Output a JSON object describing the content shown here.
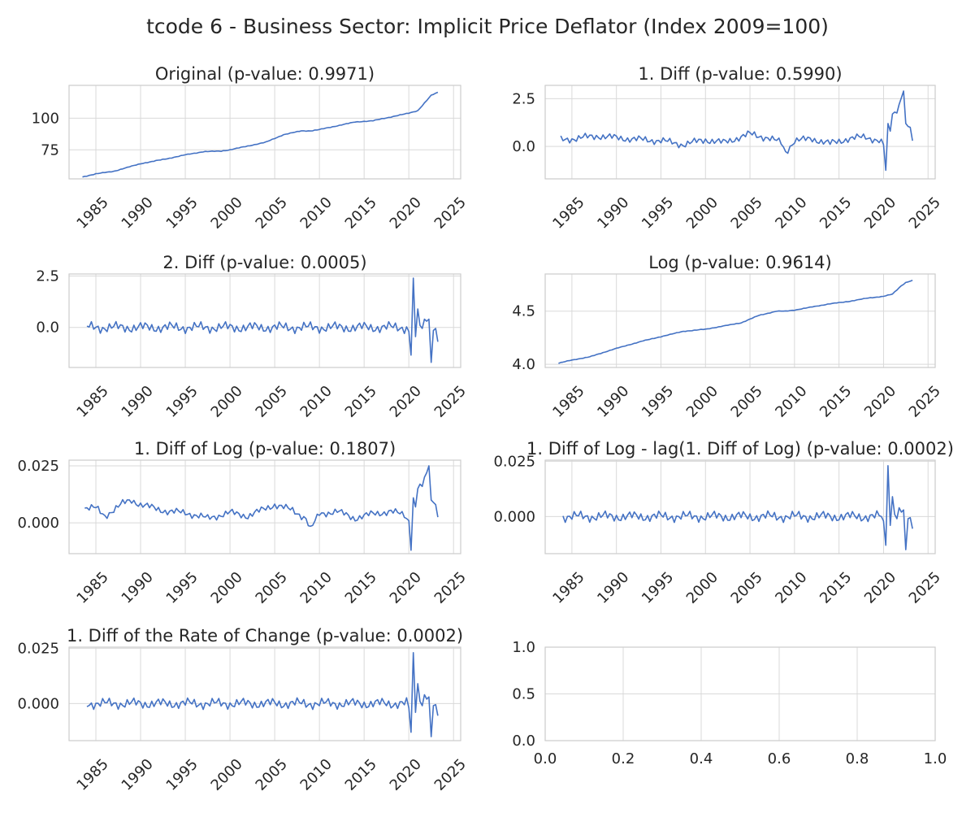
{
  "figure": {
    "suptitle": "tcode 6 - Business Sector: Implicit Price Deflator (Index 2009=100)"
  },
  "style": {
    "line_color": "#4472c4",
    "grid_color": "#d9d9d9"
  },
  "chart_data": [
    {
      "type": "line",
      "title": "Original (p-value: 0.9971)",
      "xlim": [
        1982.0,
        2025.8
      ],
      "ylim": [
        52,
        126
      ],
      "xticks": [
        1985,
        1990,
        1995,
        2000,
        2005,
        2010,
        2015,
        2020,
        2025
      ],
      "yticks": [
        75,
        100
      ],
      "ytick_labels": [
        "75",
        "100"
      ],
      "grid": true,
      "x_start": 1983.5,
      "x_step": 0.25,
      "anchors": [
        [
          1983.5,
          53.5
        ],
        [
          1985,
          56
        ],
        [
          1987,
          58
        ],
        [
          1990,
          64
        ],
        [
          1993,
          68
        ],
        [
          1995,
          71
        ],
        [
          1997,
          73.5
        ],
        [
          1999,
          74
        ],
        [
          2000,
          75
        ],
        [
          2002,
          78
        ],
        [
          2004,
          81
        ],
        [
          2006,
          87
        ],
        [
          2008,
          90
        ],
        [
          2009,
          90
        ],
        [
          2010,
          91
        ],
        [
          2012,
          94
        ],
        [
          2014,
          97
        ],
        [
          2016,
          98
        ],
        [
          2018,
          101
        ],
        [
          2020,
          104
        ],
        [
          2021,
          106
        ],
        [
          2022,
          114
        ],
        [
          2022.5,
          118
        ],
        [
          2023.25,
          120.5
        ]
      ],
      "noise": 0.3
    },
    {
      "type": "line",
      "title": "1. Diff (p-value: 0.5990)",
      "xlim": [
        1982.0,
        2025.8
      ],
      "ylim": [
        -1.7,
        3.2
      ],
      "xticks": [
        1985,
        1990,
        1995,
        2000,
        2005,
        2010,
        2015,
        2020,
        2025
      ],
      "yticks": [
        0.0,
        2.5
      ],
      "ytick_labels": [
        "0.0",
        "2.5"
      ],
      "grid": true,
      "x_start": 1983.75,
      "x_step": 0.25,
      "anchors": [
        [
          1983.75,
          0.35
        ],
        [
          1985,
          0.4
        ],
        [
          1988,
          0.55
        ],
        [
          1990,
          0.45
        ],
        [
          1993,
          0.35
        ],
        [
          1995,
          0.3
        ],
        [
          1997.5,
          0.1
        ],
        [
          2000,
          0.35
        ],
        [
          2002,
          0.2
        ],
        [
          2005,
          0.65
        ],
        [
          2007,
          0.45
        ],
        [
          2008.5,
          0.2
        ],
        [
          2009,
          -0.3
        ],
        [
          2010,
          0.3
        ],
        [
          2012,
          0.4
        ],
        [
          2014,
          0.15
        ],
        [
          2016,
          0.4
        ],
        [
          2018,
          0.5
        ],
        [
          2019.5,
          0.3
        ],
        [
          2020,
          0.1
        ]
      ],
      "spikes": [
        [
          2020.0,
          0.1
        ],
        [
          2020.25,
          -1.25
        ],
        [
          2020.5,
          1.2
        ],
        [
          2020.75,
          0.8
        ],
        [
          2021.0,
          1.7
        ],
        [
          2021.25,
          1.8
        ],
        [
          2021.5,
          1.75
        ],
        [
          2021.75,
          2.2
        ],
        [
          2022.0,
          2.55
        ],
        [
          2022.25,
          2.9
        ],
        [
          2022.5,
          1.2
        ],
        [
          2022.75,
          1.05
        ],
        [
          2023.0,
          1.0
        ],
        [
          2023.25,
          0.3
        ]
      ],
      "noise": 0.22
    },
    {
      "type": "line",
      "title": "2. Diff (p-value: 0.0005)",
      "xlim": [
        1982.0,
        2025.8
      ],
      "ylim": [
        -1.95,
        2.6
      ],
      "xticks": [
        1985,
        1990,
        1995,
        2000,
        2005,
        2010,
        2015,
        2020,
        2025
      ],
      "yticks": [
        0.0,
        2.5
      ],
      "ytick_labels": [
        "0.0",
        "2.5"
      ],
      "grid": true,
      "x_start": 1984.0,
      "x_step": 0.25,
      "anchors": [
        [
          1984.0,
          0.0
        ],
        [
          2020.0,
          0.0
        ]
      ],
      "spikes": [
        [
          2020.0,
          -0.2
        ],
        [
          2020.25,
          -1.35
        ],
        [
          2020.5,
          2.4
        ],
        [
          2020.75,
          -0.45
        ],
        [
          2021.0,
          0.9
        ],
        [
          2021.25,
          0.1
        ],
        [
          2021.5,
          -0.05
        ],
        [
          2021.75,
          0.4
        ],
        [
          2022.0,
          0.3
        ],
        [
          2022.25,
          0.4
        ],
        [
          2022.5,
          -1.7
        ],
        [
          2022.75,
          -0.15
        ],
        [
          2023.0,
          -0.05
        ],
        [
          2023.25,
          -0.7
        ]
      ],
      "noise": 0.3
    },
    {
      "type": "line",
      "title": "Log (p-value: 0.9614)",
      "xlim": [
        1982.0,
        2025.8
      ],
      "ylim": [
        3.97,
        4.85
      ],
      "xticks": [
        1985,
        1990,
        1995,
        2000,
        2005,
        2010,
        2015,
        2020,
        2025
      ],
      "yticks": [
        4.0,
        4.5
      ],
      "ytick_labels": [
        "4.0",
        "4.5"
      ],
      "grid": true,
      "x_start": 1983.5,
      "x_step": 0.25,
      "anchors": [
        [
          1983.5,
          4.01
        ],
        [
          1985,
          4.04
        ],
        [
          1987,
          4.07
        ],
        [
          1990,
          4.15
        ],
        [
          1993,
          4.22
        ],
        [
          1995,
          4.26
        ],
        [
          1997.5,
          4.31
        ],
        [
          2000,
          4.33
        ],
        [
          2002,
          4.36
        ],
        [
          2004,
          4.39
        ],
        [
          2006,
          4.46
        ],
        [
          2008,
          4.5
        ],
        [
          2009,
          4.5
        ],
        [
          2010,
          4.51
        ],
        [
          2012,
          4.54
        ],
        [
          2014,
          4.57
        ],
        [
          2016,
          4.59
        ],
        [
          2018,
          4.62
        ],
        [
          2020,
          4.64
        ],
        [
          2021,
          4.66
        ],
        [
          2022,
          4.74
        ],
        [
          2022.5,
          4.77
        ],
        [
          2023.25,
          4.79
        ]
      ],
      "noise": 0.003
    },
    {
      "type": "line",
      "title": "1. Diff of Log (p-value: 0.1807)",
      "xlim": [
        1982.0,
        2025.8
      ],
      "ylim": [
        -0.0135,
        0.0275
      ],
      "xticks": [
        1985,
        1990,
        1995,
        2000,
        2005,
        2010,
        2015,
        2020,
        2025
      ],
      "yticks": [
        0.0,
        0.025
      ],
      "ytick_labels": [
        "0.000",
        "0.025"
      ],
      "grid": true,
      "x_start": 1983.75,
      "x_step": 0.25,
      "anchors": [
        [
          1983.75,
          0.0065
        ],
        [
          1985,
          0.0065
        ],
        [
          1986,
          0.003
        ],
        [
          1988,
          0.0085
        ],
        [
          1989,
          0.01
        ],
        [
          1990,
          0.008
        ],
        [
          1993,
          0.005
        ],
        [
          1995,
          0.0045
        ],
        [
          1997.5,
          0.002
        ],
        [
          2000,
          0.0045
        ],
        [
          2002,
          0.003
        ],
        [
          2005,
          0.008
        ],
        [
          2007,
          0.0055
        ],
        [
          2008.5,
          0.002
        ],
        [
          2009,
          -0.003
        ],
        [
          2010,
          0.004
        ],
        [
          2012,
          0.005
        ],
        [
          2014,
          0.002
        ],
        [
          2016,
          0.004
        ],
        [
          2018,
          0.005
        ],
        [
          2019.5,
          0.0035
        ],
        [
          2020,
          0.001
        ]
      ],
      "spikes": [
        [
          2020.0,
          0.001
        ],
        [
          2020.25,
          -0.012
        ],
        [
          2020.5,
          0.011
        ],
        [
          2020.75,
          0.007
        ],
        [
          2021.0,
          0.015
        ],
        [
          2021.25,
          0.017
        ],
        [
          2021.5,
          0.016
        ],
        [
          2021.75,
          0.02
        ],
        [
          2022.0,
          0.022
        ],
        [
          2022.25,
          0.025
        ],
        [
          2022.5,
          0.01
        ],
        [
          2022.75,
          0.009
        ],
        [
          2023.0,
          0.008
        ],
        [
          2023.25,
          0.0025
        ]
      ],
      "noise": 0.0018
    },
    {
      "type": "line",
      "title": "1. Diff of Log - lag(1. Diff of Log) (p-value: 0.0002)",
      "xlim": [
        1982.0,
        2025.8
      ],
      "ylim": [
        -0.0168,
        0.0255
      ],
      "xticks": [
        1985,
        1990,
        1995,
        2000,
        2005,
        2010,
        2015,
        2020,
        2025
      ],
      "yticks": [
        0.0,
        0.025
      ],
      "ytick_labels": [
        "0.000",
        "0.025"
      ],
      "grid": true,
      "x_start": 1984.0,
      "x_step": 0.25,
      "anchors": [
        [
          1984.0,
          0.0
        ],
        [
          2020.0,
          0.0
        ]
      ],
      "spikes": [
        [
          2020.0,
          -0.002
        ],
        [
          2020.25,
          -0.013
        ],
        [
          2020.5,
          0.023
        ],
        [
          2020.75,
          -0.004
        ],
        [
          2021.0,
          0.009
        ],
        [
          2021.25,
          0.001
        ],
        [
          2021.5,
          -0.001
        ],
        [
          2021.75,
          0.004
        ],
        [
          2022.0,
          0.002
        ],
        [
          2022.25,
          0.003
        ],
        [
          2022.5,
          -0.015
        ],
        [
          2022.75,
          -0.001
        ],
        [
          2023.0,
          -0.0005
        ],
        [
          2023.25,
          -0.0055
        ]
      ],
      "noise": 0.0027
    },
    {
      "type": "line",
      "title": "1. Diff of the Rate of Change (p-value: 0.0002)",
      "xlim": [
        1982.0,
        2025.8
      ],
      "ylim": [
        -0.0168,
        0.0255
      ],
      "xticks": [
        1985,
        1990,
        1995,
        2000,
        2005,
        2010,
        2015,
        2020,
        2025
      ],
      "yticks": [
        0.0,
        0.025
      ],
      "ytick_labels": [
        "0.000",
        "0.025"
      ],
      "grid": true,
      "x_start": 1984.0,
      "x_step": 0.25,
      "anchors": [
        [
          1984.0,
          0.0
        ],
        [
          2020.0,
          0.0
        ]
      ],
      "spikes": [
        [
          2020.0,
          -0.002
        ],
        [
          2020.25,
          -0.013
        ],
        [
          2020.5,
          0.023
        ],
        [
          2020.75,
          -0.004
        ],
        [
          2021.0,
          0.009
        ],
        [
          2021.25,
          0.001
        ],
        [
          2021.5,
          -0.001
        ],
        [
          2021.75,
          0.004
        ],
        [
          2022.0,
          0.002
        ],
        [
          2022.25,
          0.003
        ],
        [
          2022.5,
          -0.015
        ],
        [
          2022.75,
          -0.001
        ],
        [
          2023.0,
          -0.0005
        ],
        [
          2023.25,
          -0.0055
        ]
      ],
      "noise": 0.0027
    },
    {
      "type": "line",
      "title": "",
      "xlim": [
        0,
        1
      ],
      "ylim": [
        0,
        1
      ],
      "xticks": [
        0.0,
        0.2,
        0.4,
        0.6,
        0.8,
        1.0
      ],
      "xtick_labels": [
        "0.0",
        "0.2",
        "0.4",
        "0.6",
        "0.8",
        "1.0"
      ],
      "yticks": [
        0.0,
        0.5,
        1.0
      ],
      "ytick_labels": [
        "0.0",
        "0.5",
        "1.0"
      ],
      "grid": true,
      "empty": true
    }
  ]
}
